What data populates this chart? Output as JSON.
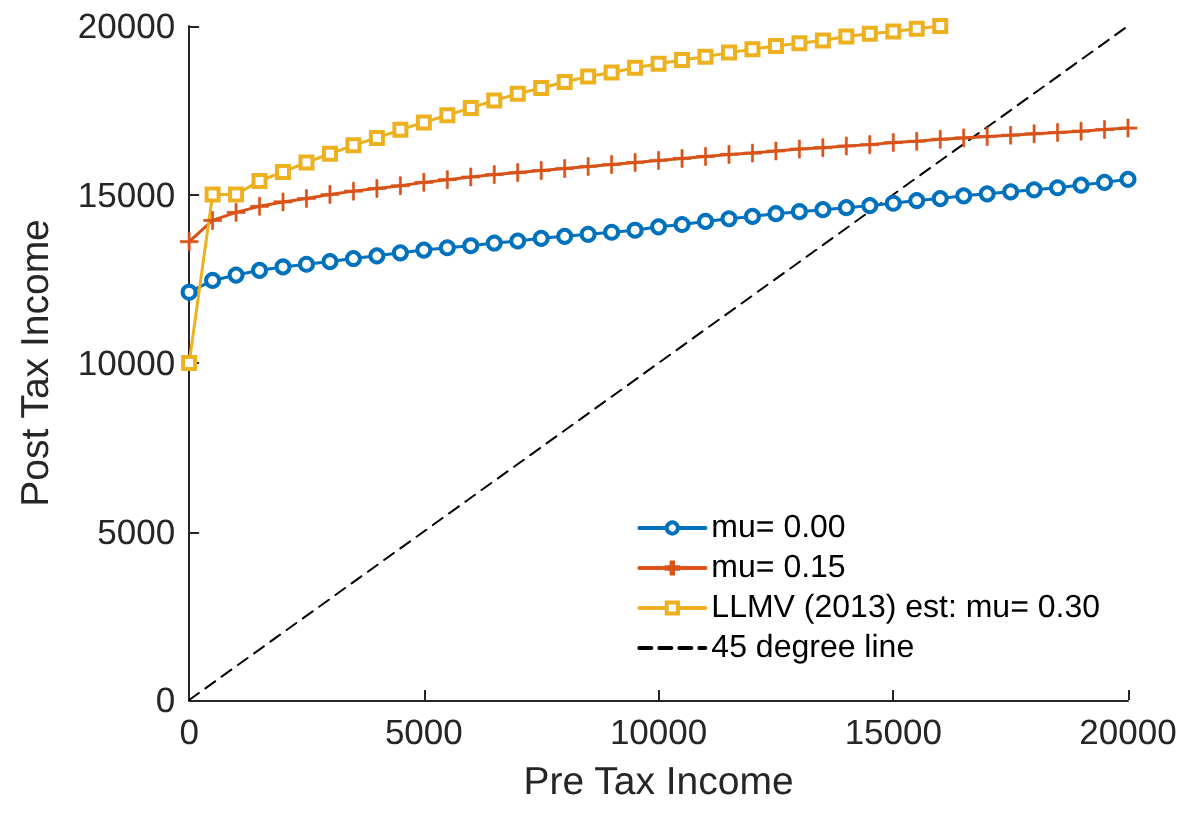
{
  "chart_data": {
    "type": "line",
    "xlabel": "Pre Tax Income",
    "ylabel": "Post Tax Income",
    "x": [
      0,
      500,
      1000,
      1500,
      2000,
      2500,
      3000,
      3500,
      4000,
      4500,
      5000,
      5500,
      6000,
      6500,
      7000,
      7500,
      8000,
      8500,
      9000,
      9500,
      10000,
      10500,
      11000,
      11500,
      12000,
      12500,
      13000,
      13500,
      14000,
      14500,
      15000,
      15500,
      16000,
      16500,
      17000,
      17500,
      18000,
      18500,
      19000,
      19500,
      20000
    ],
    "series": [
      {
        "name": "mu= 0.00",
        "color": "#0072bd",
        "marker": "circle",
        "values": [
          12100,
          12450,
          12610,
          12750,
          12850,
          12930,
          13010,
          13100,
          13180,
          13270,
          13350,
          13420,
          13480,
          13560,
          13620,
          13700,
          13760,
          13820,
          13880,
          13940,
          14040,
          14110,
          14200,
          14280,
          14350,
          14430,
          14490,
          14550,
          14610,
          14670,
          14740,
          14820,
          14880,
          14960,
          15020,
          15080,
          15140,
          15200,
          15280,
          15360,
          15450
        ]
      },
      {
        "name": "mu= 0.15",
        "color": "#d95319",
        "marker": "cross",
        "values": [
          13600,
          14230,
          14470,
          14650,
          14780,
          14880,
          15000,
          15100,
          15180,
          15260,
          15360,
          15440,
          15520,
          15590,
          15650,
          15710,
          15770,
          15830,
          15890,
          15950,
          16010,
          16070,
          16130,
          16190,
          16230,
          16290,
          16350,
          16390,
          16440,
          16480,
          16540,
          16580,
          16640,
          16680,
          16720,
          16760,
          16800,
          16840,
          16880,
          16930,
          16970
        ]
      },
      {
        "name": "LLMV (2013) est: mu= 0.30",
        "color": "#edb120",
        "marker": "square",
        "x": [
          0,
          500,
          1000,
          1500,
          2000,
          2500,
          3000,
          3500,
          4000,
          4500,
          5000,
          5500,
          6000,
          6500,
          7000,
          7500,
          8000,
          8500,
          9000,
          9500,
          10000,
          10500,
          11000,
          11500,
          12000,
          12500,
          13000,
          13500,
          14000,
          14500,
          15000,
          15500,
          16000
        ],
        "values": [
          10000,
          15000,
          15000,
          15400,
          15670,
          15950,
          16210,
          16460,
          16680,
          16920,
          17140,
          17350,
          17570,
          17790,
          17990,
          18160,
          18340,
          18500,
          18620,
          18760,
          18880,
          18990,
          19090,
          19210,
          19310,
          19410,
          19490,
          19570,
          19690,
          19770,
          19840,
          19920,
          20000
        ]
      },
      {
        "name": "45 degree line",
        "color": "#000000",
        "marker": "none",
        "line_style": "dashed",
        "x": [
          0,
          20000
        ],
        "values": [
          0,
          20000
        ]
      }
    ],
    "xlim": [
      0,
      20000
    ],
    "xticks": [
      0,
      5000,
      10000,
      15000,
      20000
    ],
    "ylim": [
      0,
      20000
    ],
    "yticks": [
      0,
      5000,
      10000,
      15000,
      20000
    ],
    "line_style": "solid",
    "legend": "bottom right"
  }
}
